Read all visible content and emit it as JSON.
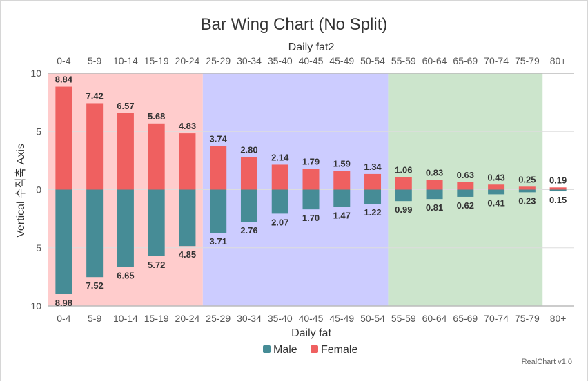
{
  "chart_data": {
    "type": "bar",
    "title": "Bar Wing Chart (No Split)",
    "xlabel": "Daily fat",
    "x2label": "Daily fat2",
    "ylabel": "Vertical 수직축 Axis",
    "categories": [
      "0-4",
      "5-9",
      "10-14",
      "15-19",
      "20-24",
      "25-29",
      "30-34",
      "35-40",
      "40-45",
      "45-49",
      "50-54",
      "55-59",
      "60-64",
      "65-69",
      "70-74",
      "75-79",
      "80+"
    ],
    "series": [
      {
        "name": "Male",
        "values": [
          8.98,
          7.52,
          6.65,
          5.72,
          4.85,
          3.71,
          2.76,
          2.07,
          1.7,
          1.47,
          1.22,
          0.99,
          0.81,
          0.62,
          0.41,
          0.23,
          0.15
        ]
      },
      {
        "name": "Female",
        "values": [
          8.84,
          7.42,
          6.57,
          5.68,
          4.83,
          3.74,
          2.8,
          2.14,
          1.79,
          1.59,
          1.34,
          1.06,
          0.83,
          0.63,
          0.43,
          0.25,
          0.19
        ]
      }
    ],
    "value_labels": {
      "male": [
        "8.98",
        "7.52",
        "6.65",
        "5.72",
        "4.85",
        "3.71",
        "2.76",
        "2.07",
        "1.70",
        "1.47",
        "1.22",
        "0.99",
        "0.81",
        "0.62",
        "0.41",
        "0.23",
        "0.15"
      ],
      "female": [
        "8.84",
        "7.42",
        "6.57",
        "5.68",
        "4.83",
        "3.74",
        "2.80",
        "2.14",
        "1.79",
        "1.59",
        "1.34",
        "1.06",
        "0.83",
        "0.63",
        "0.43",
        "0.25",
        "0.19"
      ]
    },
    "ylim": [
      -10,
      10
    ],
    "yticks": [
      10,
      5,
      0,
      5,
      10
    ],
    "bands": [
      {
        "from": -0.5,
        "to": 4.5,
        "color": "#ffcccc"
      },
      {
        "from": 4.5,
        "to": 10.5,
        "color": "#ccccff"
      },
      {
        "from": 10.5,
        "to": 15.5,
        "color": "#cce5cc"
      }
    ],
    "colors": {
      "male": "#468c96",
      "female": "#ef6060"
    },
    "legend_position": "bottom",
    "grid": true
  },
  "credit": "RealChart v1.0"
}
